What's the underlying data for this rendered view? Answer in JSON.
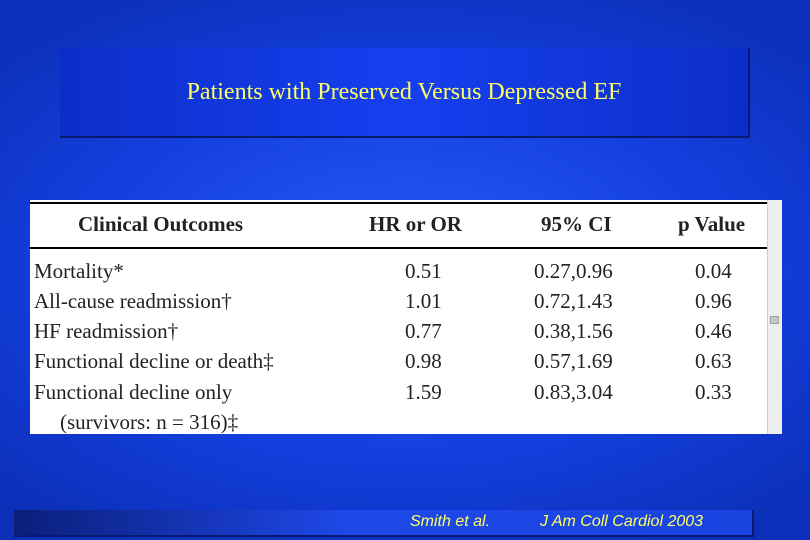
{
  "slide": {
    "title": "Patients with Preserved Versus Depressed EF",
    "colors": {
      "background": "#1a48f0",
      "title_text": "#ffff66",
      "table_bg": "#ffffff"
    }
  },
  "table": {
    "headers": [
      "Clinical Outcomes",
      "HR or OR",
      "95% CI",
      "p Value"
    ],
    "rows": [
      {
        "outcome": "Mortality*",
        "ratio": "0.51",
        "ci": "0.27,0.96",
        "p": "0.04"
      },
      {
        "outcome": "All-cause readmission†",
        "ratio": "1.01",
        "ci": "0.72,1.43",
        "p": "0.96"
      },
      {
        "outcome": "HF readmission†",
        "ratio": "0.77",
        "ci": "0.38,1.56",
        "p": "0.46"
      },
      {
        "outcome": "Functional decline or death‡",
        "ratio": "0.98",
        "ci": "0.57,1.69",
        "p": "0.63"
      },
      {
        "outcome": "Functional decline only",
        "ratio": "1.59",
        "ci": "0.83,3.04",
        "p": "0.33"
      }
    ],
    "footnote_line": "(survivors: n = 316)‡"
  },
  "footer": {
    "author": "Smith et al.",
    "journal": "J Am Coll Cardiol 2003"
  }
}
